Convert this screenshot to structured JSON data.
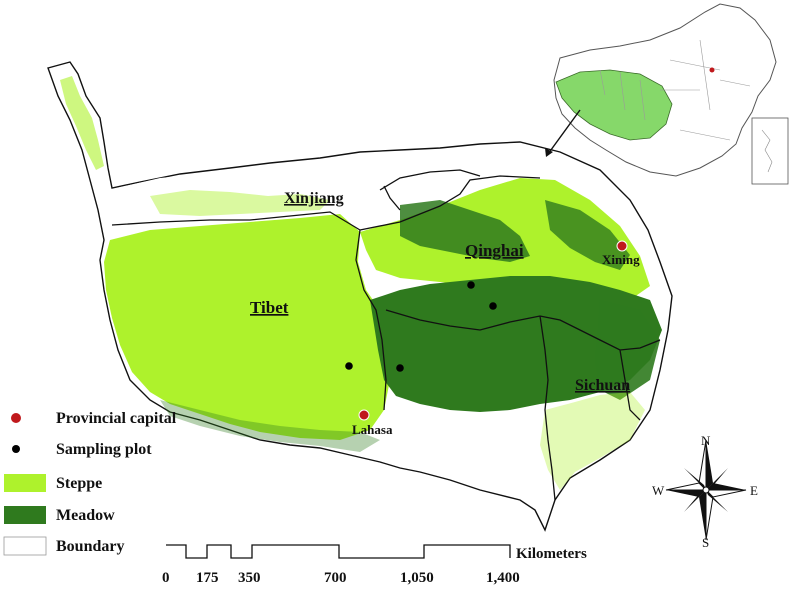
{
  "regions": {
    "xinjiang": "Xinjiang",
    "qinghai": "Qinghai",
    "tibet": "Tibet",
    "sichuan": "Sichuan"
  },
  "cities": {
    "xining": "Xining",
    "lhasa": "Lahasa"
  },
  "legend": {
    "items": [
      {
        "label": "Provincial capital",
        "symbol": "red-dot",
        "color": "#c0191c"
      },
      {
        "label": "Sampling plot",
        "symbol": "black-dot",
        "color": "#000000"
      },
      {
        "label": "Steppe",
        "symbol": "fill-box",
        "color": "#aef22c"
      },
      {
        "label": "Meadow",
        "symbol": "fill-box",
        "color": "#2f7a1e"
      },
      {
        "label": "Boundary",
        "symbol": "outline-box",
        "color": "#ffffff"
      }
    ]
  },
  "scale_bar": {
    "unit": "Kilometers",
    "ticks": [
      "0",
      "175",
      "350",
      "700",
      "1,050",
      "1,400"
    ]
  },
  "compass": {
    "n": "N",
    "s": "S",
    "e": "E",
    "w": "W"
  },
  "colors": {
    "steppe": "#aef22c",
    "meadow": "#2f7a1e",
    "capital": "#c0191c",
    "inset_highlight": "#86d86a"
  }
}
